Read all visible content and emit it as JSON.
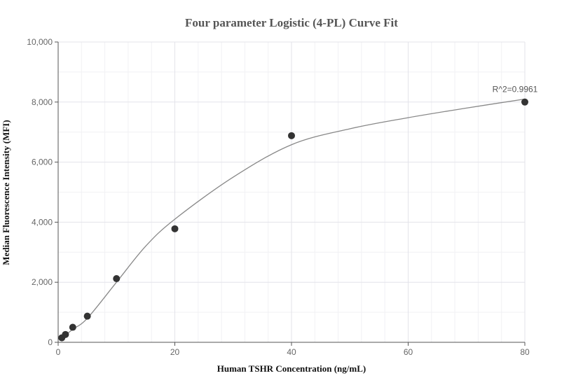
{
  "chart_data": {
    "type": "scatter",
    "title": "Four parameter Logistic (4-PL) Curve Fit",
    "xlabel": "Human TSHR Concentration (ng/mL)",
    "ylabel": "Median Fluorescence Intensity (MFI)",
    "xlim": [
      0,
      80
    ],
    "ylim": [
      0,
      10000
    ],
    "x_ticks": [
      0,
      20,
      40,
      60,
      80
    ],
    "y_ticks": [
      0,
      2000,
      4000,
      6000,
      8000,
      10000
    ],
    "x_tick_labels": [
      "0",
      "20",
      "40",
      "60",
      "80"
    ],
    "y_tick_labels": [
      "0",
      "2,000",
      "4,000",
      "6,000",
      "8,000",
      "10,000"
    ],
    "grid": true,
    "series": [
      {
        "type": "scatter",
        "x": [
          0.625,
          1.25,
          2.5,
          5,
          10,
          20,
          40,
          80
        ],
        "y": [
          150,
          260,
          500,
          870,
          2120,
          3780,
          6880,
          8000
        ],
        "color": "#333333"
      },
      {
        "type": "line",
        "x": [
          0.625,
          2.5,
          5,
          10,
          15,
          20,
          30,
          40,
          50,
          60,
          70,
          80
        ],
        "y": [
          150,
          430,
          800,
          2000,
          3200,
          4100,
          5500,
          6580,
          7110,
          7480,
          7800,
          8100
        ],
        "color": "#888888"
      }
    ],
    "annotation": {
      "text": "R^2=0.9961",
      "x": 80,
      "y": 8100
    }
  }
}
